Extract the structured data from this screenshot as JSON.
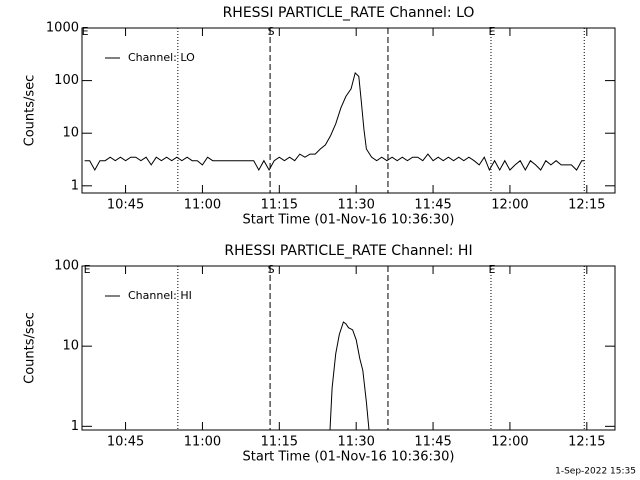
{
  "chart_data": [
    {
      "type": "line",
      "title": "RHESSI PARTICLE_RATE Channel: LO",
      "xlabel": "Start Time (01-Nov-16 10:36:30)",
      "ylabel": "Counts/sec",
      "log_y": true,
      "legend": "upper left",
      "xlim": [
        636.5,
        740.5
      ],
      "ylim": [
        0.73,
        1000
      ],
      "xticks": [
        {
          "value": 645,
          "label": "10:45"
        },
        {
          "value": 660,
          "label": "11:00"
        },
        {
          "value": 675,
          "label": "11:15"
        },
        {
          "value": 690,
          "label": "11:30"
        },
        {
          "value": 705,
          "label": "11:45"
        },
        {
          "value": 720,
          "label": "12:00"
        },
        {
          "value": 735,
          "label": "12:15"
        }
      ],
      "yticks": [
        1,
        10,
        100,
        1000
      ],
      "markers": [
        {
          "value": 655.2,
          "style": "dotted"
        },
        {
          "value": 673.2,
          "style": "dashed"
        },
        {
          "value": 696.2,
          "style": "dashed"
        },
        {
          "value": 716.3,
          "style": "dotted"
        },
        {
          "value": 734.5,
          "style": "dotted"
        }
      ],
      "flags": [
        {
          "value": 636.9,
          "label": "E"
        },
        {
          "value": 673.2,
          "label": "S"
        },
        {
          "value": 716.3,
          "label": "E"
        }
      ],
      "series": [
        {
          "name": "Channel: LO",
          "color": "#000000",
          "x": [
            637,
            638,
            639,
            640,
            641,
            642,
            643,
            644,
            645,
            646,
            647,
            648,
            649,
            650,
            651,
            652,
            653,
            654,
            655,
            656,
            657,
            658,
            659,
            660,
            661,
            662,
            663,
            664,
            665,
            666,
            667,
            668,
            669,
            670,
            671,
            672,
            673,
            674,
            675,
            676,
            677,
            678,
            679,
            680,
            681,
            682,
            683,
            684,
            685,
            686,
            687,
            688,
            689,
            689.8,
            690.5,
            691,
            691.5,
            692,
            693,
            694,
            695,
            696,
            697,
            698,
            699,
            700,
            701,
            702,
            703,
            704,
            705,
            706,
            707,
            708,
            709,
            710,
            711,
            712,
            713,
            714,
            715,
            716,
            717,
            718,
            719,
            720,
            721,
            722,
            723,
            724,
            725,
            726,
            727,
            728,
            729,
            730,
            731,
            732,
            733,
            734,
            734.5
          ],
          "values": [
            3,
            3,
            2,
            3,
            3,
            3.5,
            3,
            3.5,
            3,
            3.5,
            3.5,
            3,
            3.5,
            2.5,
            3.5,
            3,
            3.5,
            3,
            3.5,
            3,
            3.5,
            3,
            3,
            2.5,
            3.5,
            3,
            3,
            3,
            3,
            3,
            3,
            3,
            3,
            3,
            2,
            3,
            2,
            3,
            3.5,
            3,
            3.5,
            3,
            4,
            3.5,
            4,
            4,
            5,
            6,
            9,
            15,
            30,
            50,
            70,
            140,
            120,
            40,
            12,
            5,
            3.5,
            3,
            3.5,
            3,
            3.5,
            3,
            3.5,
            3,
            3.5,
            3.5,
            3,
            4,
            3,
            3.5,
            3,
            3.5,
            3,
            3.5,
            3,
            3.5,
            3,
            2.5,
            3.5,
            2,
            3,
            2,
            3,
            2,
            2.5,
            3,
            2,
            3,
            2.5,
            2,
            3,
            2.5,
            3,
            2.5,
            2.5,
            2.5,
            2,
            3,
            3
          ]
        }
      ]
    },
    {
      "type": "line",
      "title": "RHESSI PARTICLE_RATE Channel: HI",
      "xlabel": "Start Time (01-Nov-16 10:36:30)",
      "ylabel": "Counts/sec",
      "log_y": true,
      "legend": "upper left",
      "xlim": [
        636.5,
        740.5
      ],
      "ylim": [
        0.9,
        100
      ],
      "xticks": [
        {
          "value": 645,
          "label": "10:45"
        },
        {
          "value": 660,
          "label": "11:00"
        },
        {
          "value": 675,
          "label": "11:15"
        },
        {
          "value": 690,
          "label": "11:30"
        },
        {
          "value": 705,
          "label": "11:45"
        },
        {
          "value": 720,
          "label": "12:00"
        },
        {
          "value": 735,
          "label": "12:15"
        }
      ],
      "yticks": [
        1,
        10,
        100
      ],
      "markers": [
        {
          "value": 655.2,
          "style": "dotted"
        },
        {
          "value": 673.2,
          "style": "dashed"
        },
        {
          "value": 696.2,
          "style": "dashed"
        },
        {
          "value": 716.3,
          "style": "dotted"
        },
        {
          "value": 734.5,
          "style": "dotted"
        }
      ],
      "flags": [
        {
          "value": 637.3,
          "label": "E"
        },
        {
          "value": 673.2,
          "label": "S"
        },
        {
          "value": 716.3,
          "label": "E"
        }
      ],
      "series": [
        {
          "name": "Channel: HI",
          "color": "#000000",
          "x": [
            684.9,
            685.3,
            686,
            686.7,
            687.5,
            688,
            688.5,
            689.3,
            690,
            690.7,
            691.3,
            692,
            692.5
          ],
          "values": [
            0.9,
            3,
            8,
            14,
            20,
            19,
            17,
            16,
            12,
            7,
            5,
            2,
            0.9
          ]
        }
      ]
    }
  ],
  "footer": "1-Sep-2022 15:35"
}
